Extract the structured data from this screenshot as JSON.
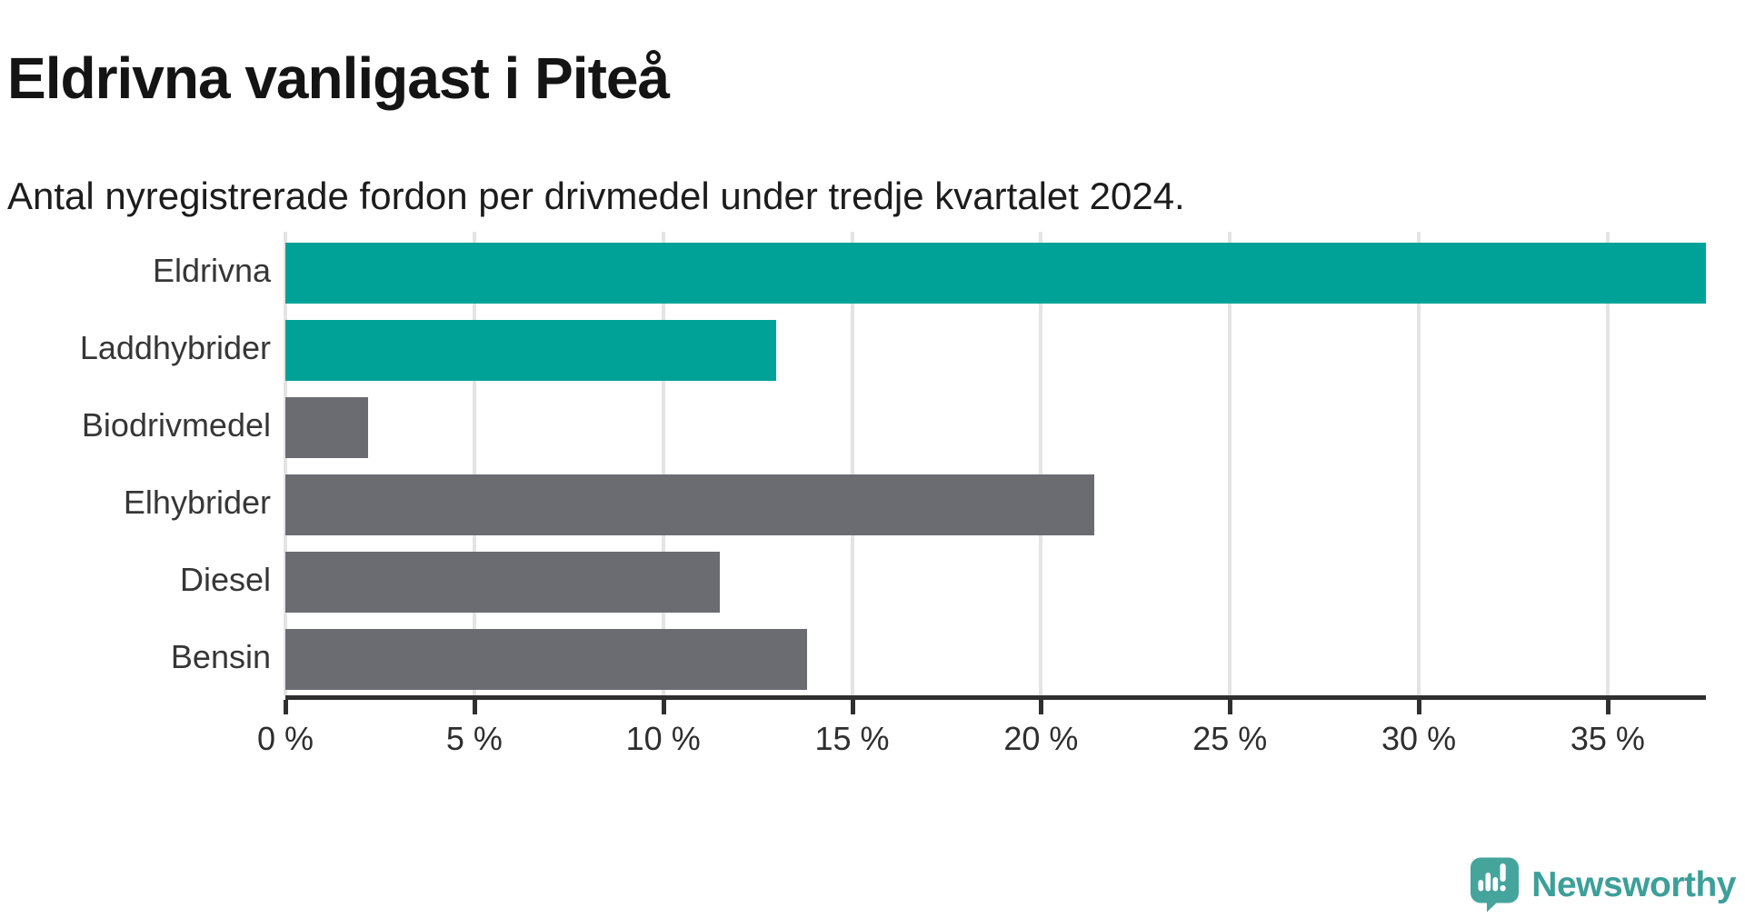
{
  "header": {
    "title": "Eldrivna vanligast i Piteå",
    "subtitle": "Antal nyregistrerade fordon per drivmedel under tredje kvartalet 2024."
  },
  "chart_data": {
    "type": "bar",
    "orientation": "horizontal",
    "title": "Eldrivna vanligast i Piteå",
    "subtitle": "Antal nyregistrerade fordon per drivmedel under tredje kvartalet 2024.",
    "categories": [
      "Eldrivna",
      "Laddhybrider",
      "Biodrivmedel",
      "Elhybrider",
      "Diesel",
      "Bensin"
    ],
    "values": [
      37.6,
      13.0,
      2.2,
      21.4,
      11.5,
      13.8
    ],
    "unit": "%",
    "xlim": [
      0,
      37.6
    ],
    "x_ticks": [
      0,
      5,
      10,
      15,
      20,
      25,
      30,
      35
    ],
    "x_tick_labels": [
      "0 %",
      "5 %",
      "10 %",
      "15 %",
      "20 %",
      "25 %",
      "30 %",
      "35 %"
    ],
    "bar_colors": [
      "#00a298",
      "#00a298",
      "#6b6b72",
      "#6b6b72",
      "#6b6b72",
      "#6b6b72"
    ],
    "highlight_color": "#00a298",
    "default_color": "#6b6b72",
    "grid": true,
    "gridline_color": "#e4e4e4",
    "axis_color": "#2f2f2f",
    "legend": "none"
  },
  "branding": {
    "logo_text": "Newsworthy",
    "logo_color": "#3d9f99",
    "logo_icon": "newsworthy-speech-bubble-chart-icon",
    "logo_icon_color": "#45a59c"
  }
}
